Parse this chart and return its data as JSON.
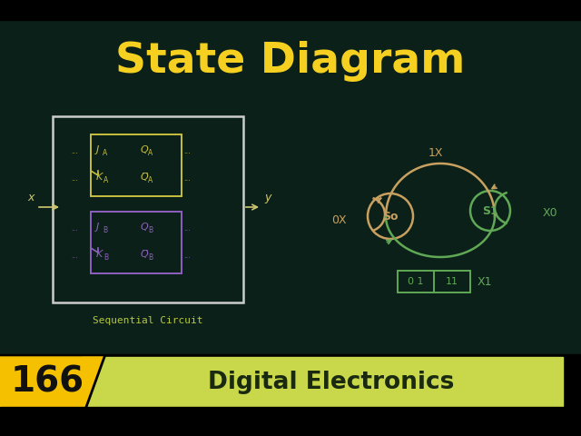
{
  "bg_color": "#0b2018",
  "title": "State Diagram",
  "title_color": "#f5d020",
  "title_fontsize": 34,
  "bottom_text": "Digital Electronics",
  "bottom_num": "166",
  "seq_label": "Sequential Circuit",
  "seq_label_color": "#b8c840",
  "circuit_box_color": "#cccccc",
  "ff_a_color": "#c8c040",
  "ff_b_color": "#9060c0",
  "diagram_color": "#60a855",
  "state0_label": "So",
  "state1_label": "S1",
  "s0_color": "#c8a060",
  "s1_color": "#60a855",
  "label_0x": "0X",
  "label_1x": "1X",
  "label_x0": "X0",
  "label_x1": "X1",
  "table_label_01": "0 1",
  "table_label_11": "11",
  "top_bar_color": "#000000",
  "bot_bar_color": "#000000",
  "badge_color": "#f5c000",
  "strip_color": "#c8d84a",
  "slash_color": "#c8d84a",
  "io_color": "#cccccc",
  "wire_color": "#d0c870"
}
